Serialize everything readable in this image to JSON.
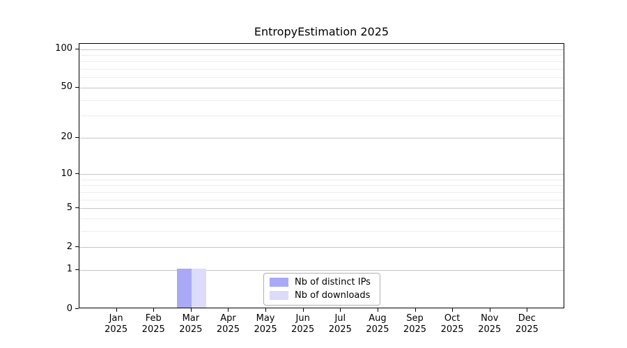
{
  "figure": {
    "background": "#ffffff"
  },
  "chart_data": {
    "type": "bar",
    "title": "EntropyEstimation 2025",
    "x_categories": [
      {
        "month": "Jan",
        "year": "2025"
      },
      {
        "month": "Feb",
        "year": "2025"
      },
      {
        "month": "Mar",
        "year": "2025"
      },
      {
        "month": "Apr",
        "year": "2025"
      },
      {
        "month": "May",
        "year": "2025"
      },
      {
        "month": "Jun",
        "year": "2025"
      },
      {
        "month": "Jul",
        "year": "2025"
      },
      {
        "month": "Aug",
        "year": "2025"
      },
      {
        "month": "Sep",
        "year": "2025"
      },
      {
        "month": "Oct",
        "year": "2025"
      },
      {
        "month": "Nov",
        "year": "2025"
      },
      {
        "month": "Dec",
        "year": "2025"
      }
    ],
    "series": [
      {
        "name": "Nb of distinct IPs",
        "color": "#a9a9f7",
        "values": [
          0,
          0,
          1,
          0,
          0,
          0,
          0,
          0,
          0,
          0,
          0,
          0
        ]
      },
      {
        "name": "Nb of downloads",
        "color": "#dcdcfa",
        "values": [
          0,
          0,
          1,
          0,
          0,
          0,
          0,
          0,
          0,
          0,
          0,
          0
        ]
      }
    ],
    "y_scale": "log1p",
    "ylim": [
      0,
      110
    ],
    "y_major_ticks": [
      0,
      1,
      2,
      5,
      10,
      20,
      50,
      100
    ],
    "y_minor_gridlines": [
      3,
      4,
      6,
      7,
      8,
      9,
      30,
      40,
      60,
      70,
      80,
      90
    ],
    "grid": "on",
    "legend_position": "lower center",
    "colors": {
      "major_grid": "#c6c6c6",
      "minor_grid": "#ededed",
      "axis": "#000000",
      "text": "#000000"
    }
  }
}
